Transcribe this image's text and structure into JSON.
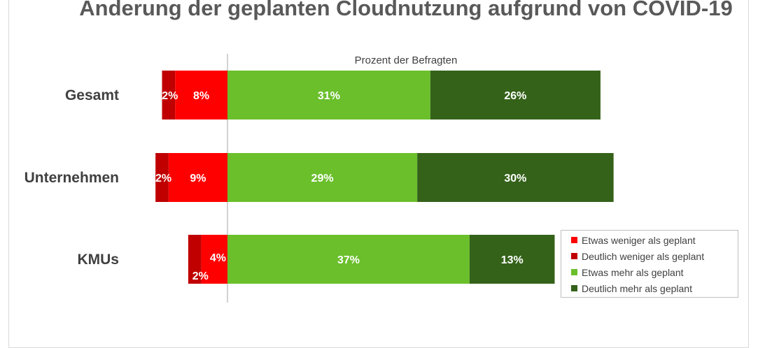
{
  "chart_data": {
    "type": "bar",
    "orientation": "horizontal",
    "stacked": "diverging",
    "title": "Änderung der geplanten Cloudnutzung aufgrund von COVID-19",
    "xlabel": "Prozent der Befragten",
    "ylabel": "",
    "categories": [
      "Gesamt",
      "Unternehmen",
      "KMUs"
    ],
    "series": [
      {
        "name": "Etwas weniger als geplant",
        "values": [
          8,
          9,
          4
        ],
        "labels": [
          "8%",
          "9%",
          "4%"
        ],
        "color": "#ff0000",
        "side": "negative"
      },
      {
        "name": "Deutlich weniger als geplant",
        "values": [
          2,
          2,
          2
        ],
        "labels": [
          "2%",
          "2%",
          "2%"
        ],
        "color": "#c00000",
        "side": "negative"
      },
      {
        "name": "Etwas mehr als geplant",
        "values": [
          31,
          29,
          37
        ],
        "labels": [
          "31%",
          "29%",
          "37%"
        ],
        "color": "#6abf2b",
        "side": "positive"
      },
      {
        "name": "Deutlich mehr als geplant",
        "values": [
          26,
          30,
          13
        ],
        "labels": [
          "26%",
          "30%",
          "13%"
        ],
        "color": "#346219",
        "side": "positive"
      }
    ],
    "legend": "bottom-right",
    "grid": false
  }
}
